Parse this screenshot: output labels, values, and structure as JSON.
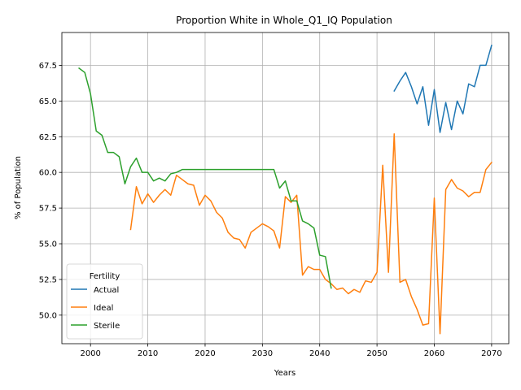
{
  "chart_data": {
    "type": "line",
    "title": "Proportion White in Whole_Q1_IQ Population",
    "xlabel": "Years",
    "ylabel": "% of Population",
    "xlim": [
      1995,
      2073
    ],
    "ylim": [
      48.0,
      69.8
    ],
    "xticks": [
      2000,
      2010,
      2020,
      2030,
      2040,
      2050,
      2060,
      2070
    ],
    "xtick_labels": [
      "2000",
      "2010",
      "2020",
      "2030",
      "2040",
      "2050",
      "2060",
      "2070"
    ],
    "yticks": [
      50.0,
      52.5,
      55.0,
      57.5,
      60.0,
      62.5,
      65.0,
      67.5
    ],
    "ytick_labels": [
      "50.0",
      "52.5",
      "55.0",
      "57.5",
      "60.0",
      "62.5",
      "65.0",
      "67.5"
    ],
    "grid": true,
    "legend": {
      "title": "Fertility",
      "placement": "lower-left",
      "entries": [
        "Actual",
        "Ideal",
        "Sterile"
      ]
    },
    "series": [
      {
        "name": "Actual",
        "color": "#1f77b4",
        "x": [
          2053,
          2054,
          2055,
          2056,
          2057,
          2058,
          2059,
          2060,
          2061,
          2062,
          2063,
          2064,
          2065,
          2066,
          2067,
          2068,
          2069,
          2070
        ],
        "values": [
          65.7,
          66.4,
          67.0,
          66.0,
          64.8,
          66.0,
          63.3,
          65.8,
          62.8,
          64.9,
          63.0,
          65.0,
          64.1,
          66.2,
          66.0,
          67.5,
          67.5,
          68.9
        ]
      },
      {
        "name": "Ideal",
        "color": "#ff7f0e",
        "x": [
          2007,
          2008,
          2009,
          2010,
          2011,
          2012,
          2013,
          2014,
          2015,
          2016,
          2017,
          2018,
          2019,
          2020,
          2021,
          2022,
          2023,
          2024,
          2025,
          2026,
          2027,
          2028,
          2029,
          2030,
          2031,
          2032,
          2033,
          2034,
          2035,
          2036,
          2037,
          2038,
          2039,
          2040,
          2041,
          2042,
          2043,
          2044,
          2045,
          2046,
          2047,
          2048,
          2049,
          2050,
          2051,
          2052,
          2053,
          2054,
          2055,
          2056,
          2057,
          2058,
          2059,
          2060,
          2061,
          2062,
          2063,
          2064,
          2065,
          2066,
          2067,
          2068,
          2069,
          2070
        ],
        "values": [
          56.0,
          59.0,
          57.8,
          58.5,
          57.9,
          58.4,
          58.8,
          58.4,
          59.8,
          59.5,
          59.2,
          59.1,
          57.7,
          58.4,
          58.0,
          57.2,
          56.8,
          55.8,
          55.4,
          55.3,
          54.7,
          55.8,
          56.1,
          56.4,
          56.2,
          55.9,
          54.7,
          58.3,
          57.9,
          58.4,
          52.8,
          53.4,
          53.2,
          53.2,
          52.5,
          52.2,
          51.8,
          51.9,
          51.5,
          51.8,
          51.6,
          52.4,
          52.3,
          53.0,
          60.5,
          53.0,
          62.7,
          52.3,
          52.5,
          51.3,
          50.4,
          49.3,
          49.4,
          58.2,
          48.7,
          58.8,
          59.5,
          58.9,
          58.7,
          58.3,
          58.6,
          58.6,
          60.2,
          60.7
        ]
      },
      {
        "name": "Sterile",
        "color": "#2ca02c",
        "x": [
          1998,
          1999,
          2000,
          2001,
          2002,
          2003,
          2004,
          2005,
          2006,
          2007,
          2008,
          2009,
          2010,
          2011,
          2012,
          2013,
          2014,
          2015,
          2016,
          2017,
          2018,
          2019,
          2020,
          2021,
          2022,
          2023,
          2024,
          2025,
          2026,
          2027,
          2028,
          2029,
          2030,
          2031,
          2032,
          2033,
          2034,
          2035,
          2036,
          2037,
          2038,
          2039,
          2040,
          2041,
          2042
        ],
        "values": [
          67.3,
          67.0,
          65.5,
          62.9,
          62.6,
          61.4,
          61.4,
          61.1,
          59.2,
          60.4,
          61.0,
          60.0,
          60.0,
          59.4,
          59.6,
          59.4,
          59.9,
          60.0,
          60.2,
          60.2,
          60.2,
          60.2,
          60.2,
          60.2,
          60.2,
          60.2,
          60.2,
          60.2,
          60.2,
          60.2,
          60.2,
          60.2,
          60.2,
          60.2,
          60.2,
          58.9,
          59.4,
          58.0,
          58.0,
          56.6,
          56.4,
          56.1,
          54.2,
          54.1,
          51.9
        ]
      }
    ]
  }
}
